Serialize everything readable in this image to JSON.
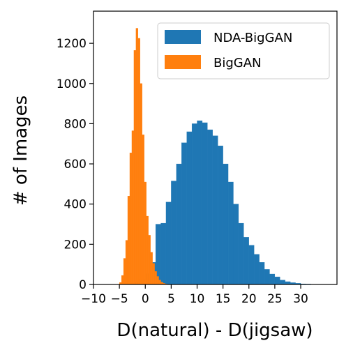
{
  "chart_data": {
    "type": "bar",
    "subtype": "overlapping-histogram",
    "title": "",
    "xlabel": "D(natural) - D(jigsaw)",
    "ylabel": "# of Images",
    "xlim": [
      -10,
      37
    ],
    "ylim": [
      0,
      1360
    ],
    "xticks": [
      {
        "value": -10,
        "label": "−10"
      },
      {
        "value": -5,
        "label": "−5"
      },
      {
        "value": 0,
        "label": "0"
      },
      {
        "value": 5,
        "label": "5"
      },
      {
        "value": 10,
        "label": "10"
      },
      {
        "value": 15,
        "label": "15"
      },
      {
        "value": 20,
        "label": "20"
      },
      {
        "value": 25,
        "label": "25"
      },
      {
        "value": 30,
        "label": "30"
      }
    ],
    "yticks": [
      0,
      200,
      400,
      600,
      800,
      1000,
      1200
    ],
    "grid": false,
    "legend_position": "top-right",
    "series": [
      {
        "name": "NDA-BigGAN",
        "color": "#1f77b4",
        "bins": [
          [
            -5.0,
            -4.0,
            1
          ],
          [
            -4.0,
            -3.0,
            2
          ],
          [
            -3.0,
            -2.0,
            5
          ],
          [
            -2.0,
            -1.0,
            12
          ],
          [
            -1.0,
            0.0,
            25
          ],
          [
            0.0,
            1.0,
            55
          ],
          [
            1.0,
            2.0,
            110
          ],
          [
            2.0,
            3.0,
            300
          ],
          [
            3.0,
            4.0,
            305
          ],
          [
            4.0,
            5.0,
            410
          ],
          [
            5.0,
            6.0,
            515
          ],
          [
            6.0,
            7.0,
            600
          ],
          [
            7.0,
            8.0,
            705
          ],
          [
            8.0,
            9.0,
            760
          ],
          [
            9.0,
            10.0,
            800
          ],
          [
            10.0,
            11.0,
            815
          ],
          [
            11.0,
            12.0,
            805
          ],
          [
            12.0,
            13.0,
            770
          ],
          [
            13.0,
            14.0,
            740
          ],
          [
            14.0,
            15.0,
            690
          ],
          [
            15.0,
            16.0,
            600
          ],
          [
            16.0,
            17.0,
            510
          ],
          [
            17.0,
            18.0,
            400
          ],
          [
            18.0,
            19.0,
            305
          ],
          [
            19.0,
            20.0,
            235
          ],
          [
            20.0,
            21.0,
            195
          ],
          [
            21.0,
            22.0,
            150
          ],
          [
            22.0,
            23.0,
            110
          ],
          [
            23.0,
            24.0,
            75
          ],
          [
            24.0,
            25.0,
            52
          ],
          [
            25.0,
            26.0,
            38
          ],
          [
            26.0,
            27.0,
            22
          ],
          [
            27.0,
            28.0,
            14
          ],
          [
            28.0,
            29.0,
            9
          ],
          [
            29.0,
            30.0,
            6
          ],
          [
            30.0,
            31.0,
            3
          ],
          [
            31.0,
            32.0,
            2
          ],
          [
            32.0,
            33.0,
            1
          ]
        ]
      },
      {
        "name": "BigGAN",
        "color": "#ff7f0e",
        "bins": [
          [
            -5.0,
            -4.6,
            10
          ],
          [
            -4.6,
            -4.2,
            45
          ],
          [
            -4.2,
            -3.8,
            130
          ],
          [
            -3.8,
            -3.4,
            220
          ],
          [
            -3.4,
            -3.0,
            440
          ],
          [
            -3.0,
            -2.6,
            655
          ],
          [
            -2.6,
            -2.2,
            765
          ],
          [
            -2.2,
            -1.8,
            1165
          ],
          [
            -1.8,
            -1.4,
            1275
          ],
          [
            -1.4,
            -1.0,
            1225
          ],
          [
            -1.0,
            -0.6,
            1000
          ],
          [
            -0.6,
            -0.2,
            745
          ],
          [
            -0.2,
            0.2,
            510
          ],
          [
            0.2,
            0.6,
            340
          ],
          [
            0.6,
            1.0,
            245
          ],
          [
            1.0,
            1.4,
            160
          ],
          [
            1.4,
            1.8,
            105
          ],
          [
            1.8,
            2.2,
            65
          ],
          [
            2.2,
            2.6,
            40
          ],
          [
            2.6,
            3.0,
            22
          ],
          [
            3.0,
            3.4,
            12
          ],
          [
            3.4,
            3.8,
            6
          ],
          [
            3.8,
            4.2,
            3
          ]
        ]
      }
    ]
  }
}
